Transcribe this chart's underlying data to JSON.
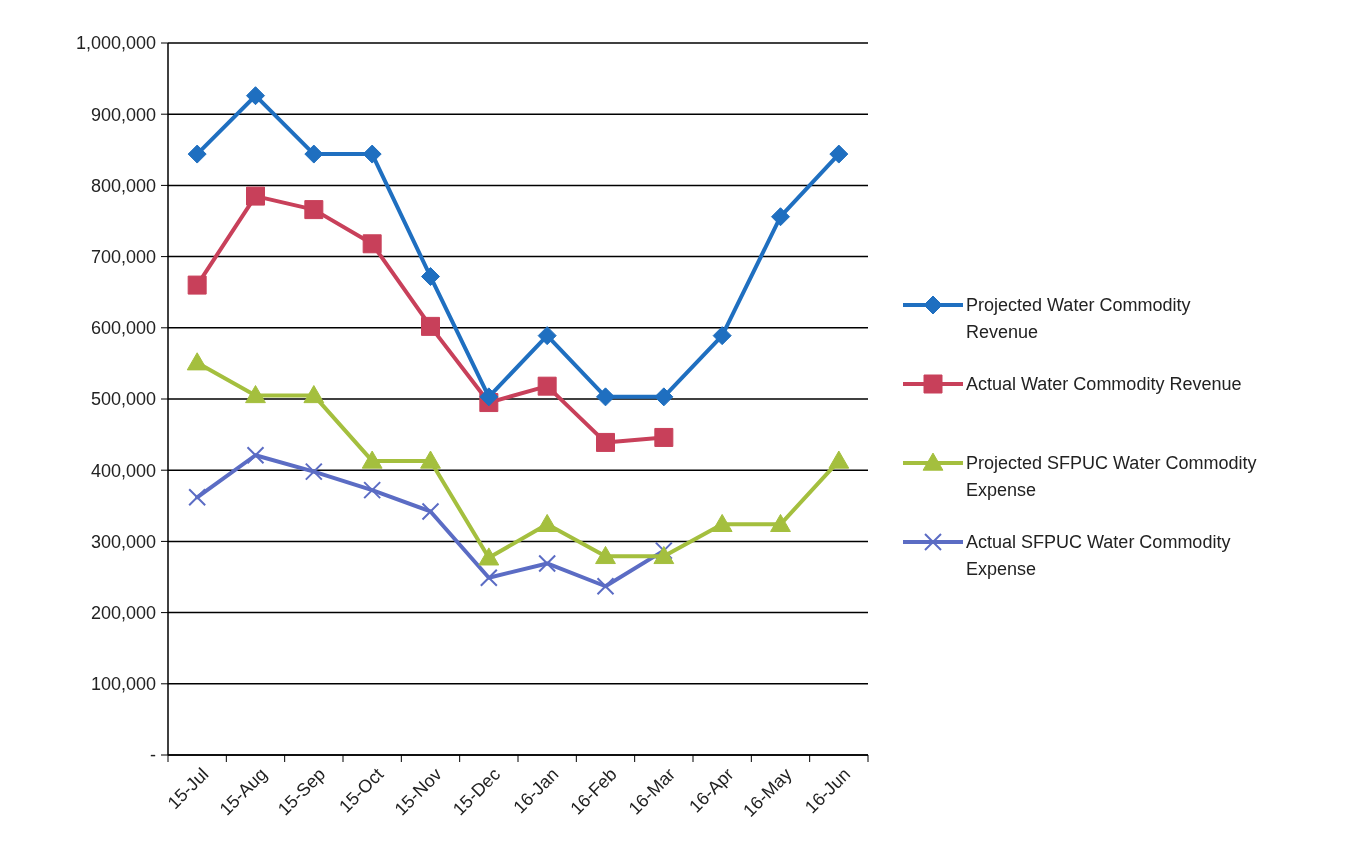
{
  "chart_data": {
    "type": "line",
    "categories": [
      "15-Jul",
      "15-Aug",
      "15-Sep",
      "15-Oct",
      "15-Nov",
      "15-Dec",
      "16-Jan",
      "16-Feb",
      "16-Mar",
      "16-Apr",
      "16-May",
      "16-Jun"
    ],
    "series": [
      {
        "name": "Projected Water Commodity Revenue",
        "color": "#1f6fc0",
        "marker": "diamond",
        "values": [
          844000,
          926000,
          844000,
          844000,
          672000,
          503000,
          589000,
          503000,
          503000,
          589000,
          756000,
          844000
        ]
      },
      {
        "name": "Actual Water Commodity Revenue",
        "color": "#c8405a",
        "marker": "square",
        "values": [
          660000,
          785000,
          766000,
          718000,
          602000,
          495000,
          518000,
          439000,
          446000,
          null,
          null,
          null
        ]
      },
      {
        "name": "Projected SFPUC Water Commodity Expense",
        "color": "#a4bf3e",
        "marker": "triangle",
        "values": [
          551000,
          505000,
          505000,
          413000,
          413000,
          277000,
          324000,
          279000,
          279000,
          324000,
          324000,
          413000
        ]
      },
      {
        "name": "Actual SFPUC Water Commodity Expense",
        "color": "#5b6cc4",
        "marker": "cross",
        "values": [
          362000,
          421000,
          398000,
          372000,
          342000,
          249000,
          269000,
          237000,
          287000,
          null,
          null,
          null
        ]
      }
    ],
    "ylim": [
      0,
      1000000
    ],
    "yticks": [
      {
        "value": 0,
        "label": "-"
      },
      {
        "value": 100000,
        "label": "100,000"
      },
      {
        "value": 200000,
        "label": "200,000"
      },
      {
        "value": 300000,
        "label": "300,000"
      },
      {
        "value": 400000,
        "label": "400,000"
      },
      {
        "value": 500000,
        "label": "500,000"
      },
      {
        "value": 600000,
        "label": "600,000"
      },
      {
        "value": 700000,
        "label": "700,000"
      },
      {
        "value": 800000,
        "label": "800,000"
      },
      {
        "value": 900000,
        "label": "900,000"
      },
      {
        "value": 1000000,
        "label": "1,000,000"
      }
    ],
    "grid": "y",
    "legend": "right"
  }
}
